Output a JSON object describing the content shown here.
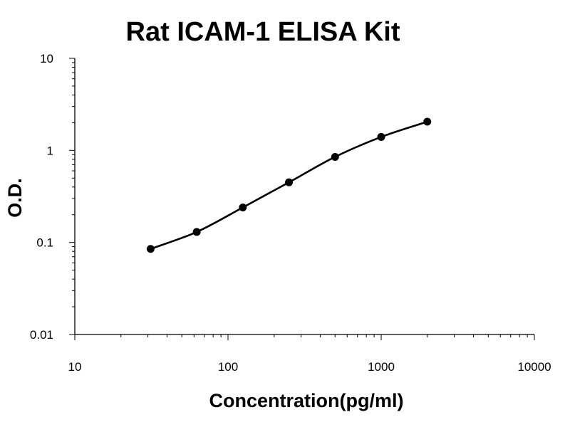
{
  "chart_data": {
    "type": "scatter",
    "title": "Rat ICAM-1 ELISA Kit",
    "xlabel": "Concentration(pg/ml)",
    "ylabel": "O.D.",
    "xscale": "log",
    "yscale": "log",
    "xlim": [
      10,
      10000
    ],
    "ylim": [
      0.01,
      10
    ],
    "xticks": [
      10,
      100,
      1000,
      10000
    ],
    "xtick_labels": [
      "10",
      "100",
      "1000",
      "10000"
    ],
    "yticks": [
      0.01,
      0.1,
      1,
      10
    ],
    "ytick_labels": [
      "0.01",
      "0.1",
      "1",
      "10"
    ],
    "grid": false,
    "legend": "none",
    "fit_curve": true,
    "line_color": "#000000",
    "marker_color": "#000000",
    "points": [
      {
        "x": 31.25,
        "y": 0.085
      },
      {
        "x": 62.5,
        "y": 0.13
      },
      {
        "x": 125,
        "y": 0.24
      },
      {
        "x": 250,
        "y": 0.45
      },
      {
        "x": 500,
        "y": 0.85
      },
      {
        "x": 1000,
        "y": 1.4
      },
      {
        "x": 2000,
        "y": 2.05
      }
    ]
  }
}
